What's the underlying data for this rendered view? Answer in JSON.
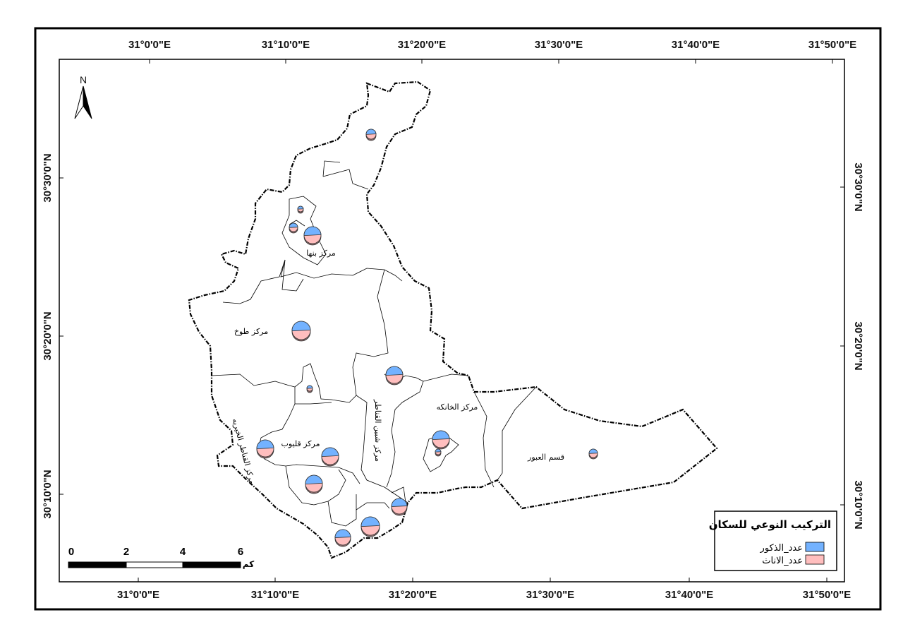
{
  "coords": {
    "top": [
      "31°0'0\"E",
      "31°10'0\"E",
      "31°20'0\"E",
      "31°30'0\"E",
      "31°40'0\"E",
      "31°50'0\"E"
    ],
    "bottom": [
      "31°0'0\"E",
      "31°10'0\"E",
      "31°20'0\"E",
      "31°30'0\"E",
      "31°40'0\"E",
      "31°50'0\"E"
    ],
    "left": [
      "30°30'0\"N",
      "30°20'0\"N",
      "30°10'0\"N"
    ],
    "right": [
      "30°30'0\"N",
      "30°20'0\"N",
      "30°10'0\"N"
    ]
  },
  "north_arrow": {
    "letter": "N",
    "icon": "north-arrow-icon"
  },
  "districts": {
    "banha": "مركز بنها",
    "tukh": "مركز طوخ",
    "shibin": "مركز شبين القناطر",
    "khanka": "مركز الخانكه",
    "qalyub": "مركز قليوب",
    "qanater": "مركز القناطر الخيريه",
    "obour": "قسم العبور"
  },
  "legend": {
    "title": "التركيب النوعي للسكان",
    "items": [
      {
        "label": "عدد_الذكور",
        "color": "#73b2ff"
      },
      {
        "label": "عدد_الاناث",
        "color": "#ffbebe"
      }
    ]
  },
  "scale": {
    "ticks": [
      "0",
      "2",
      "4",
      "6"
    ],
    "unit": "كم"
  },
  "colors": {
    "male": "#73b2ff",
    "female": "#ffbebe",
    "outline": "#000000"
  }
}
